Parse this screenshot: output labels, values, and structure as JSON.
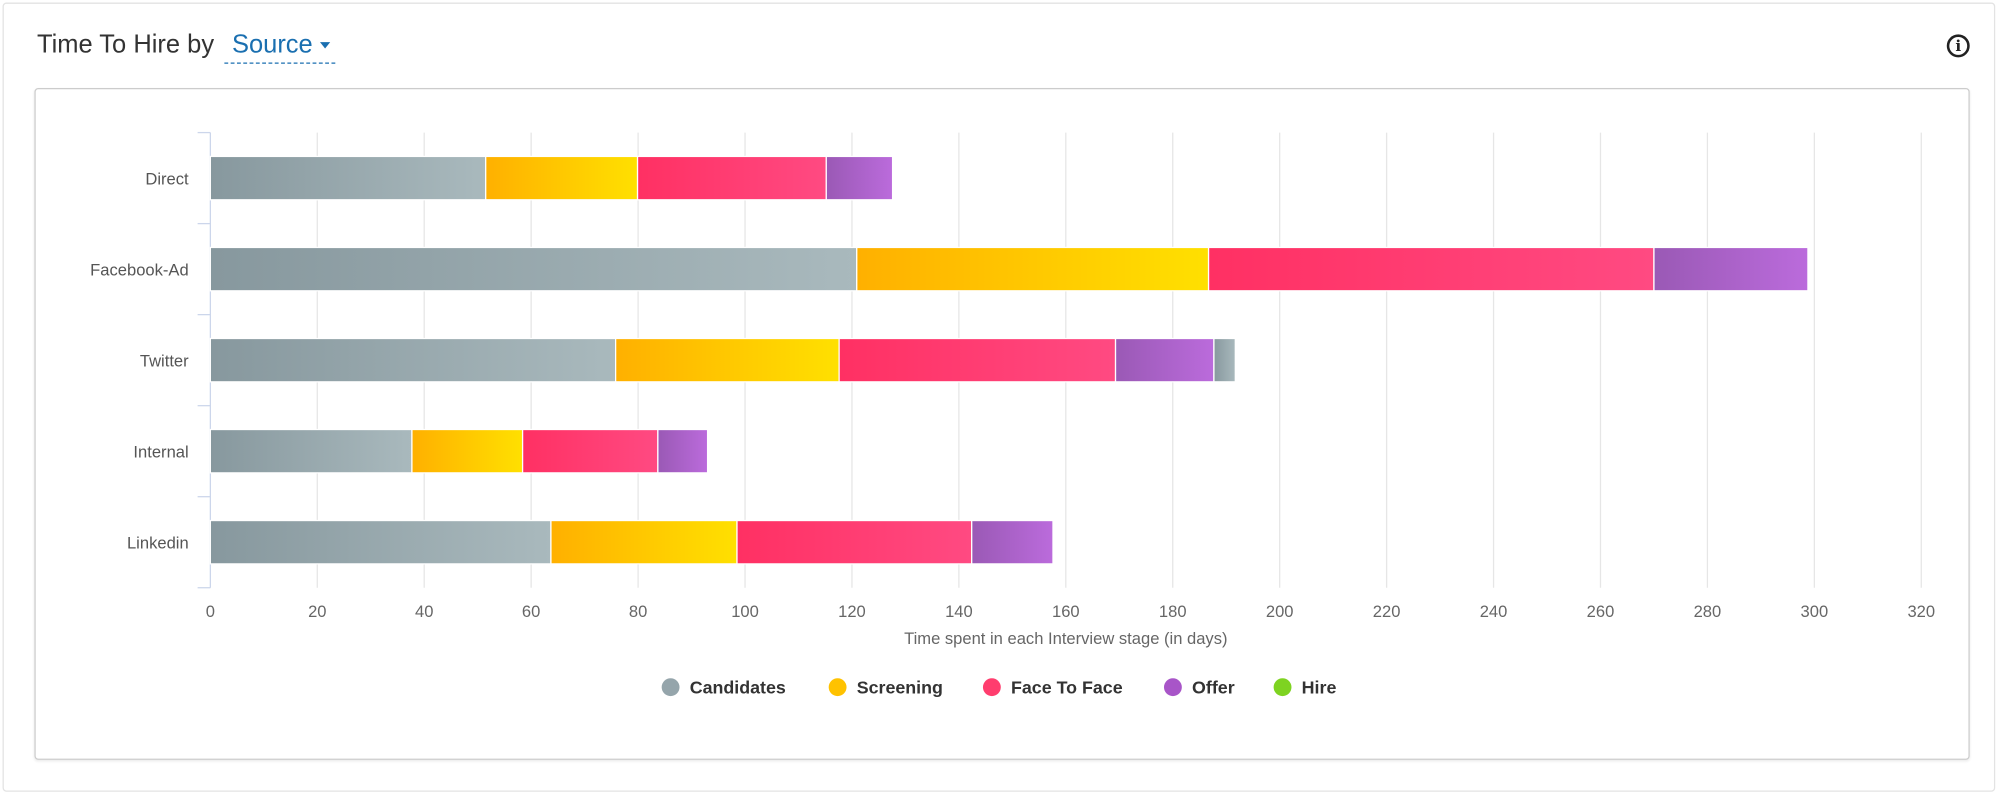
{
  "header": {
    "title_prefix": "Time To Hire by",
    "group_by": "Source",
    "info_icon": "info-icon"
  },
  "chart_data": {
    "type": "bar",
    "orientation": "horizontal",
    "stacked": true,
    "categories": [
      "Direct",
      "Facebook-Ad",
      "Twitter",
      "Internal",
      "Linkedin"
    ],
    "series": [
      {
        "name": "Candidates",
        "color": "#95a5ab",
        "values": [
          51.5,
          120.9,
          75.8,
          37.7,
          63.7
        ]
      },
      {
        "name": "Screening",
        "color": "#ffc200",
        "values": [
          28.4,
          65.8,
          41.8,
          20.7,
          34.8
        ]
      },
      {
        "name": "Face To Face",
        "color": "#ff3d6e",
        "values": [
          35.3,
          83.3,
          51.7,
          25.3,
          43.9
        ]
      },
      {
        "name": "Offer",
        "color": "#a855c8",
        "values": [
          12.4,
          28.8,
          18.4,
          9.3,
          15.2
        ]
      },
      {
        "name": "Hire",
        "color": "#7ed321",
        "values": [
          0,
          0,
          0,
          0,
          0
        ]
      }
    ],
    "extra_segments": [
      {
        "category": "Twitter",
        "series": "Candidates",
        "value": 4
      }
    ],
    "xlabel": "Time spent in each Interview stage (in days)",
    "xlim": [
      0,
      320
    ],
    "xticks": [
      0,
      20,
      40,
      60,
      80,
      100,
      120,
      140,
      160,
      180,
      200,
      220,
      240,
      260,
      280,
      300,
      320
    ],
    "grid": true,
    "legend": "bottom-center"
  }
}
